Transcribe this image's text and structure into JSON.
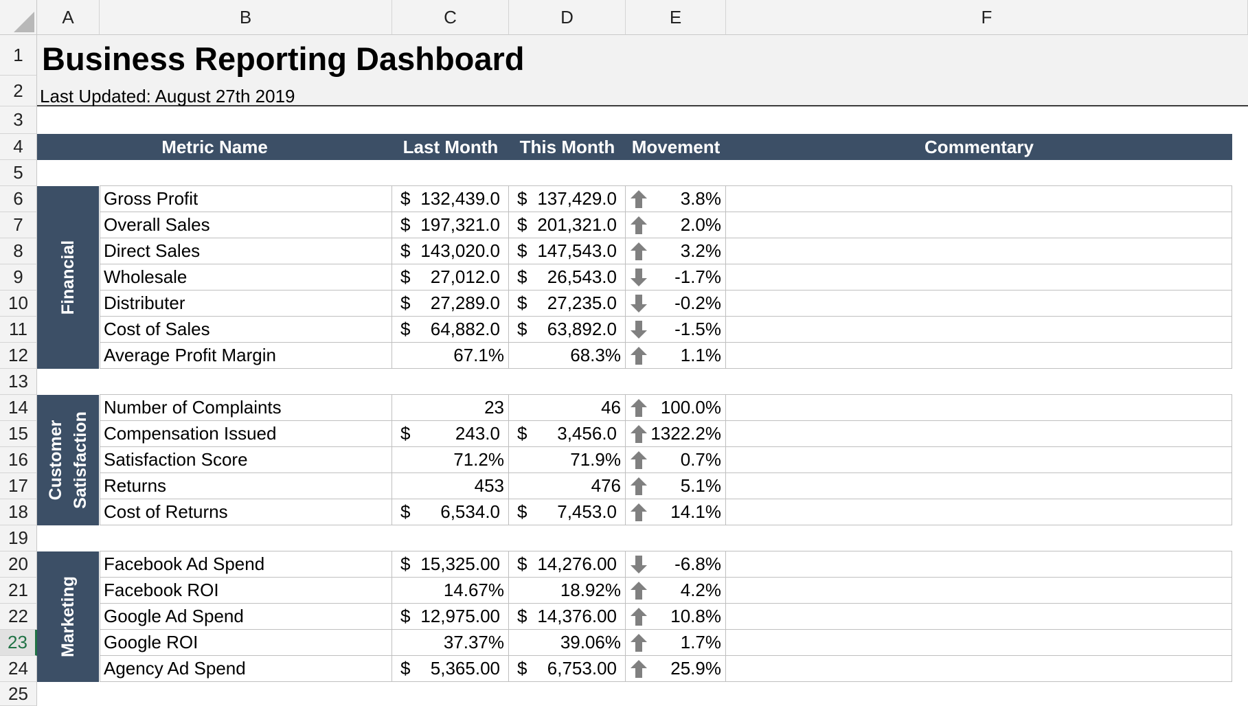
{
  "columns": [
    "A",
    "B",
    "C",
    "D",
    "E",
    "F"
  ],
  "rows": [
    "1",
    "2",
    "3",
    "4",
    "5",
    "6",
    "7",
    "8",
    "9",
    "10",
    "11",
    "12",
    "13",
    "14",
    "15",
    "16",
    "17",
    "18",
    "19",
    "20",
    "21",
    "22",
    "23",
    "24",
    "25"
  ],
  "selected_row": "23",
  "title": "Business Reporting Dashboard",
  "last_updated": "Last Updated: August 27th 2019",
  "headers": {
    "metric": "Metric Name",
    "last": "Last Month",
    "this": "This Month",
    "movement": "Movement",
    "commentary": "Commentary"
  },
  "colors": {
    "header": "#3c4f66",
    "arrow": "#808080",
    "selected": "#217346"
  },
  "sections": [
    {
      "label": "Financial",
      "metrics": [
        {
          "name": "Gross Profit",
          "last_cur": "$",
          "last": "132,439.0",
          "this_cur": "$",
          "this": "137,429.0",
          "dir": "up",
          "movement": "3.8%"
        },
        {
          "name": "Overall Sales",
          "last_cur": "$",
          "last": "197,321.0",
          "this_cur": "$",
          "this": "201,321.0",
          "dir": "up",
          "movement": "2.0%"
        },
        {
          "name": "Direct Sales",
          "last_cur": "$",
          "last": "143,020.0",
          "this_cur": "$",
          "this": "147,543.0",
          "dir": "up",
          "movement": "3.2%"
        },
        {
          "name": "Wholesale",
          "last_cur": "$",
          "last": "27,012.0",
          "this_cur": "$",
          "this": "26,543.0",
          "dir": "down",
          "movement": "-1.7%"
        },
        {
          "name": "Distributer",
          "last_cur": "$",
          "last": "27,289.0",
          "this_cur": "$",
          "this": "27,235.0",
          "dir": "down",
          "movement": "-0.2%"
        },
        {
          "name": "Cost of Sales",
          "last_cur": "$",
          "last": "64,882.0",
          "this_cur": "$",
          "this": "63,892.0",
          "dir": "down",
          "movement": "-1.5%"
        },
        {
          "name": "Average Profit Margin",
          "last_cur": "",
          "last": "67.1%",
          "this_cur": "",
          "this": "68.3%",
          "dir": "up",
          "movement": "1.1%"
        }
      ]
    },
    {
      "label": "Customer\nSatisfaction",
      "metrics": [
        {
          "name": "Number of Complaints",
          "last_cur": "",
          "last": "23",
          "this_cur": "",
          "this": "46",
          "dir": "up",
          "movement": "100.0%"
        },
        {
          "name": "Compensation Issued",
          "last_cur": "$",
          "last": "243.0",
          "this_cur": "$",
          "this": "3,456.0",
          "dir": "up",
          "movement": "1322.2%"
        },
        {
          "name": "Satisfaction Score",
          "last_cur": "",
          "last": "71.2%",
          "this_cur": "",
          "this": "71.9%",
          "dir": "up",
          "movement": "0.7%"
        },
        {
          "name": "Returns",
          "last_cur": "",
          "last": "453",
          "this_cur": "",
          "this": "476",
          "dir": "up",
          "movement": "5.1%"
        },
        {
          "name": "Cost of Returns",
          "last_cur": "$",
          "last": "6,534.0",
          "this_cur": "$",
          "this": "7,453.0",
          "dir": "up",
          "movement": "14.1%"
        }
      ]
    },
    {
      "label": "Marketing",
      "metrics": [
        {
          "name": "Facebook Ad Spend",
          "last_cur": "$",
          "last": "15,325.00",
          "this_cur": "$",
          "this": "14,276.00",
          "dir": "down",
          "movement": "-6.8%"
        },
        {
          "name": "Facebook ROI",
          "last_cur": "",
          "last": "14.67%",
          "this_cur": "",
          "this": "18.92%",
          "dir": "up",
          "movement": "4.2%"
        },
        {
          "name": "Google Ad Spend",
          "last_cur": "$",
          "last": "12,975.00",
          "this_cur": "$",
          "this": "14,376.00",
          "dir": "up",
          "movement": "10.8%"
        },
        {
          "name": "Google ROI",
          "last_cur": "",
          "last": "37.37%",
          "this_cur": "",
          "this": "39.06%",
          "dir": "up",
          "movement": "1.7%"
        },
        {
          "name": "Agency Ad Spend",
          "last_cur": "$",
          "last": "5,365.00",
          "this_cur": "$",
          "this": "6,753.00",
          "dir": "up",
          "movement": "25.9%"
        }
      ]
    }
  ]
}
